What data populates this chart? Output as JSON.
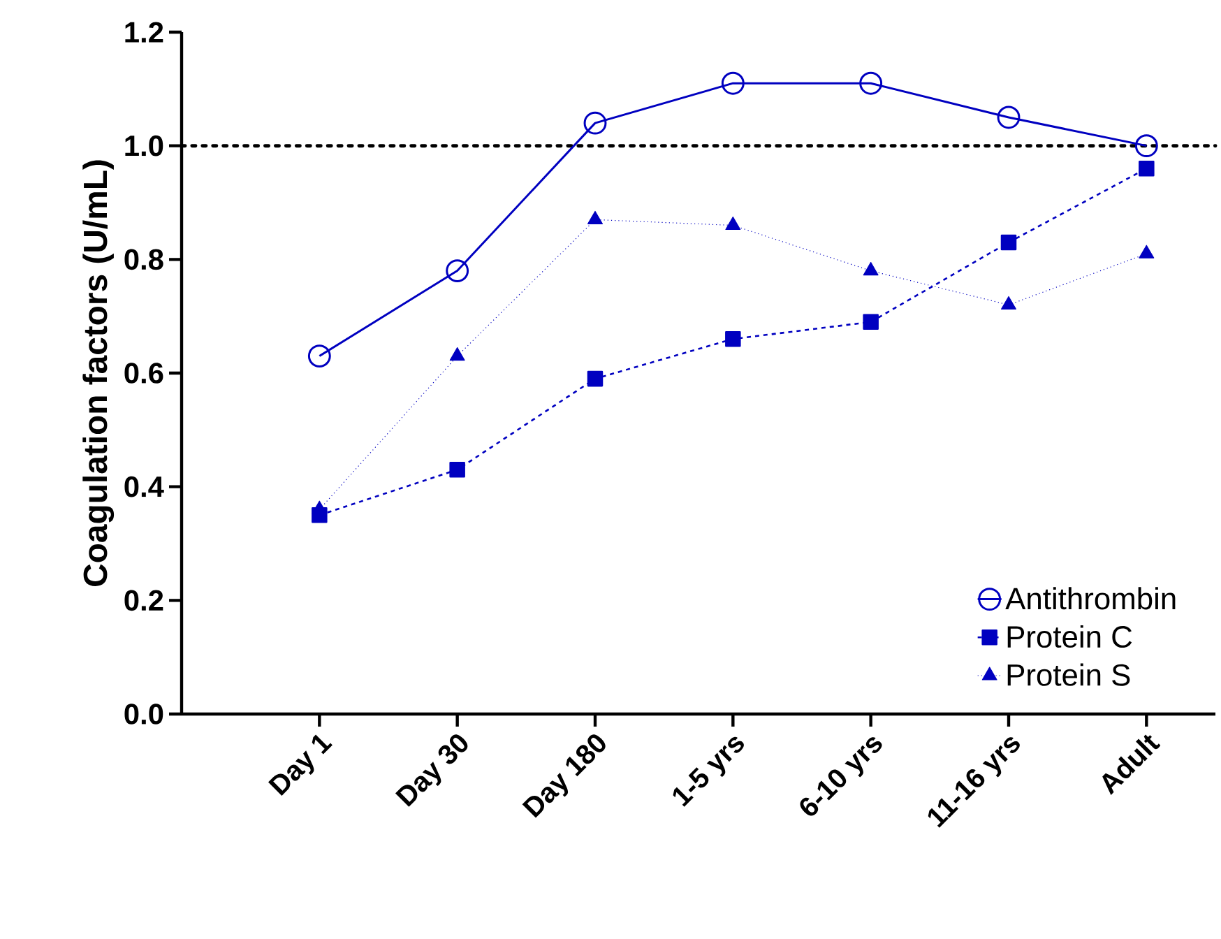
{
  "chart_data": {
    "type": "line",
    "ylabel": "Coagulation factors (U/mL)",
    "categories": [
      "Day 1",
      "Day 30",
      "Day 180",
      "1-5 yrs",
      "6-10 yrs",
      "11-16 yrs",
      "Adult"
    ],
    "series": [
      {
        "name": "Antithrombin",
        "color": "#0000c0",
        "marker": "circle",
        "line_style": "solid",
        "values": [
          0.63,
          0.78,
          1.04,
          1.11,
          1.11,
          1.05,
          1.0
        ]
      },
      {
        "name": "Protein C",
        "color": "#0000c0",
        "marker": "square",
        "line_style": "dashed",
        "values": [
          0.35,
          0.43,
          0.59,
          0.66,
          0.69,
          0.83,
          0.96
        ]
      },
      {
        "name": "Protein S",
        "color": "#0000c0",
        "marker": "triangle",
        "line_style": "dotted",
        "values": [
          0.36,
          0.63,
          0.87,
          0.86,
          0.78,
          0.72,
          0.81
        ]
      }
    ],
    "ylim": [
      0,
      1.2
    ],
    "yticks": [
      {
        "value": 0,
        "label": "0.0"
      },
      {
        "value": 0.2,
        "label": "0.2"
      },
      {
        "value": 0.4,
        "label": "0.4"
      },
      {
        "value": 0.6,
        "label": "0.6"
      },
      {
        "value": 0.8,
        "label": "0.8"
      },
      {
        "value": 1.0,
        "label": "1.0"
      },
      {
        "value": 1.2,
        "label": "1.2"
      }
    ],
    "ref_lines": [
      {
        "axis": "y",
        "value": 1.0,
        "color": "#000000",
        "line_style": "dotted"
      }
    ],
    "grid": false,
    "legend": "bottom right"
  }
}
